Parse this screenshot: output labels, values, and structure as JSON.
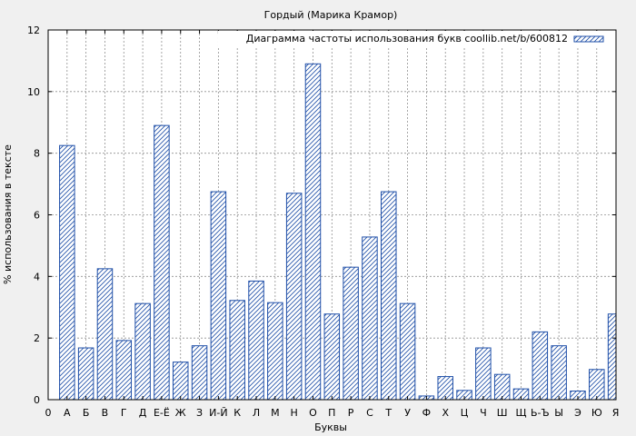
{
  "chart_data": {
    "type": "bar",
    "title": "Гордый (Марика Крамор)",
    "xlabel": "Буквы",
    "ylabel": "% использования в тексте",
    "legend": {
      "label": "Диаграмма частоты использования букв coollib.net/b/600812",
      "position": "top-right"
    },
    "x_origin_label": "0",
    "categories": [
      "А",
      "Б",
      "В",
      "Г",
      "Д",
      "Е-Ё",
      "Ж",
      "З",
      "И-Й",
      "К",
      "Л",
      "М",
      "Н",
      "О",
      "П",
      "Р",
      "С",
      "Т",
      "У",
      "Ф",
      "Х",
      "Ц",
      "Ч",
      "Ш",
      "Щ",
      "Ь-Ъ",
      "Ы",
      "Э",
      "Ю",
      "Я"
    ],
    "values": [
      8.25,
      1.68,
      4.25,
      1.92,
      3.12,
      8.9,
      1.22,
      1.75,
      6.75,
      3.22,
      3.85,
      3.15,
      6.7,
      10.9,
      2.78,
      4.3,
      5.28,
      6.75,
      3.12,
      0.12,
      0.75,
      0.3,
      1.68,
      0.82,
      0.35,
      2.2,
      1.75,
      0.28,
      0.98,
      2.78
    ],
    "ylim": [
      0,
      12
    ],
    "yticks": [
      0,
      2,
      4,
      6,
      8,
      10,
      12
    ],
    "grid": true,
    "colors": {
      "bar_stroke": "#1f4fa8",
      "hatch": "#1f4fa8",
      "grid": "#909090",
      "background": "#f0f0f0",
      "plot_background": "#ffffff"
    }
  }
}
